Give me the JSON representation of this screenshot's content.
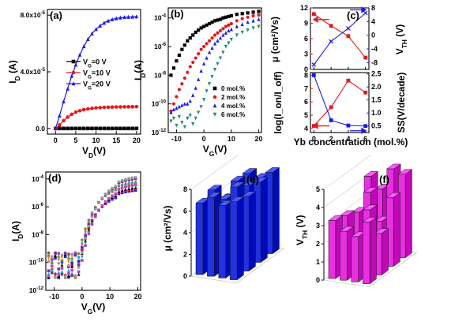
{
  "chart_data": [
    {
      "panel": "(a)",
      "type": "line",
      "xlabel": "V_D(V)",
      "ylabel": "I_D (A)",
      "xlim": [
        -2,
        21
      ],
      "ylim": [
        -4e-06,
        8.4e-05
      ],
      "xticks": [
        "0",
        "5",
        "10",
        "15",
        "20"
      ],
      "yticks": [
        "0.0",
        "4.0x10-5",
        "8.0x10-5"
      ],
      "legend_placement": "center",
      "series": [
        {
          "name": "V_G=0 V",
          "color": "#000000",
          "marker": "square",
          "x": [
            0,
            1,
            2,
            3,
            4,
            5,
            6,
            7,
            8,
            9,
            10,
            11,
            12,
            13,
            14,
            15,
            16,
            17,
            18,
            19,
            20
          ],
          "y": [
            0,
            0,
            0,
            0,
            0,
            0,
            0,
            0,
            0,
            0,
            0,
            0,
            0,
            0,
            0,
            0,
            0,
            0,
            0,
            0,
            0
          ]
        },
        {
          "name": "V_G=10 V",
          "color": "#e8171e",
          "marker": "circle",
          "x": [
            0,
            1,
            2,
            3,
            4,
            5,
            6,
            7,
            8,
            9,
            10,
            11,
            12,
            13,
            14,
            15,
            16,
            17,
            18,
            19,
            20
          ],
          "y": [
            0,
            2.5e-06,
            5.5e-06,
            8e-06,
            1e-05,
            1.15e-05,
            1.25e-05,
            1.33e-05,
            1.38e-05,
            1.42e-05,
            1.45e-05,
            1.47e-05,
            1.49e-05,
            1.5e-05,
            1.51e-05,
            1.52e-05,
            1.52e-05,
            1.53e-05,
            1.53e-05,
            1.53e-05,
            1.54e-05
          ]
        },
        {
          "name": "V_G=20 V",
          "color": "#1a1ae8",
          "marker": "triangle",
          "x": [
            0,
            1,
            2,
            3,
            4,
            5,
            6,
            7,
            8,
            9,
            10,
            11,
            12,
            13,
            14,
            15,
            16,
            17,
            18,
            19,
            20
          ],
          "y": [
            0,
            9e-06,
            1.9e-05,
            2.8e-05,
            3.7e-05,
            4.5e-05,
            5.2e-05,
            5.8e-05,
            6.3e-05,
            6.7e-05,
            7e-05,
            7.25e-05,
            7.45e-05,
            7.6e-05,
            7.7e-05,
            7.77e-05,
            7.82e-05,
            7.85e-05,
            7.87e-05,
            7.88e-05,
            7.9e-05
          ]
        }
      ]
    },
    {
      "panel": "(b)",
      "type": "scatter",
      "xlabel": "V_G(V)",
      "ylabel": "I_D(A)",
      "log_y": true,
      "xlim": [
        -13,
        21
      ],
      "ylim_log10": [
        -12,
        -3.3
      ],
      "xticks": [
        "-10",
        "0",
        "10",
        "20"
      ],
      "yticks": [
        "10-4",
        "10-6",
        "10-8",
        "10-10",
        "10-12"
      ],
      "legend_placement": "bottom-right",
      "series": [
        {
          "name": "0 mol.%",
          "color": "#000000",
          "marker": "square",
          "x": [
            -12,
            -11,
            -10,
            -9,
            -8,
            -7,
            -6,
            -5,
            -4,
            -3,
            -2,
            -1,
            0,
            1,
            2,
            3,
            4,
            5,
            6,
            7,
            8,
            9,
            10,
            12,
            14,
            16,
            18,
            20
          ],
          "log10y": [
            -8.0,
            -7.5,
            -7.0,
            -6.6,
            -6.2,
            -5.9,
            -5.6,
            -5.4,
            -5.2,
            -5.0,
            -4.85,
            -4.7,
            -4.6,
            -4.5,
            -4.4,
            -4.3,
            -4.2,
            -4.15,
            -4.1,
            -4.0,
            -3.95,
            -3.9,
            -3.85,
            -3.75,
            -3.7,
            -3.65,
            -3.6,
            -3.55
          ]
        },
        {
          "name": "2 mol.%",
          "color": "#e8171e",
          "marker": "circle",
          "x": [
            -12,
            -11,
            -10,
            -9,
            -8,
            -7,
            -6,
            -5,
            -4,
            -3,
            -2,
            -1,
            0,
            1,
            2,
            3,
            4,
            5,
            6,
            7,
            8,
            9,
            10,
            12,
            14,
            16,
            18,
            20
          ],
          "log10y": [
            -10.5,
            -10.0,
            -9.5,
            -9.0,
            -8.6,
            -8.2,
            -7.8,
            -7.4,
            -7.1,
            -6.8,
            -6.5,
            -6.2,
            -6.0,
            -5.8,
            -5.6,
            -5.4,
            -5.2,
            -5.05,
            -4.9,
            -4.75,
            -4.6,
            -4.5,
            -4.4,
            -4.2,
            -4.05,
            -3.95,
            -3.85,
            -3.8
          ]
        },
        {
          "name": "4 mol.%",
          "color": "#1a1ae8",
          "marker": "triangle",
          "x": [
            -12,
            -11,
            -10,
            -9,
            -8,
            -7,
            -6,
            -5,
            -4,
            -3,
            -2,
            -1,
            0,
            1,
            2,
            3,
            4,
            5,
            6,
            7,
            8,
            9,
            10,
            12,
            14,
            16,
            18,
            20
          ],
          "log10y": [
            -10.6,
            -10.4,
            -10.3,
            -10.2,
            -10.1,
            -10.0,
            -10.0,
            -9.8,
            -9.4,
            -8.9,
            -8.3,
            -7.7,
            -7.2,
            -6.8,
            -6.4,
            -6.1,
            -5.8,
            -5.6,
            -5.4,
            -5.2,
            -5.05,
            -4.9,
            -4.8,
            -4.6,
            -4.45,
            -4.3,
            -4.2,
            -4.1
          ]
        },
        {
          "name": "6 mol.%",
          "color": "#1e8a7a",
          "marker": "triangle-down",
          "x": [
            -12,
            -11,
            -10,
            -9,
            -8,
            -7,
            -6,
            -5,
            -4,
            -3,
            -2,
            -1,
            0,
            1,
            2,
            3,
            4,
            5,
            6,
            7,
            8,
            9,
            10,
            12,
            14,
            16,
            18,
            20
          ],
          "log10y": [
            -11.2,
            -11.0,
            -11.5,
            -10.9,
            -11.3,
            -11.6,
            -11.0,
            -10.8,
            -11.4,
            -11.0,
            -10.6,
            -10.2,
            -9.7,
            -9.1,
            -8.6,
            -8.1,
            -7.6,
            -7.2,
            -6.8,
            -6.4,
            -6.0,
            -5.75,
            -5.5,
            -5.2,
            -5.0,
            -4.85,
            -4.7,
            -4.6
          ]
        }
      ]
    },
    {
      "panel": "(c)",
      "type": "line",
      "xlabel": "Yb concentration (mol.%)",
      "xlim": [
        -0.4,
        6.4
      ],
      "xticks": [
        "0",
        "2",
        "4",
        "6"
      ],
      "top": {
        "ylabel_left": "μ (cm²/Vs)",
        "ylabel_right": "V_TH (V)",
        "ylim_left": [
          0,
          12
        ],
        "ylim_right": [
          -10,
          8
        ],
        "yticks_left": [
          "0",
          "3",
          "6",
          "9",
          "12"
        ],
        "yticks_right": [
          "-8",
          "-4",
          "0",
          "4",
          "8"
        ],
        "series": [
          {
            "name": "μ",
            "axis": "left",
            "color": "#e8171e",
            "marker": "square",
            "x": [
              0,
              2,
              4,
              6
            ],
            "y": [
              10.8,
              8.5,
              6.5,
              2.3
            ]
          },
          {
            "name": "V_TH",
            "axis": "right",
            "color": "#1a1ae8",
            "marker": "cross",
            "x": [
              0,
              2,
              4,
              6
            ],
            "y": [
              -8.6,
              -1.8,
              2.0,
              6.5
            ]
          }
        ]
      },
      "bottom": {
        "ylabel_left": "log(I_on/I_off)",
        "ylabel_right": "SS(V/decade)",
        "ylim_left": [
          3.7,
          8.2
        ],
        "ylim_right": [
          0.25,
          2.55
        ],
        "yticks_left": [
          "4",
          "5",
          "6",
          "7",
          "8"
        ],
        "yticks_right": [
          "0.5",
          "1.0",
          "1.5",
          "2.0",
          "2.5"
        ],
        "series": [
          {
            "name": "log(Ion/Ioff)",
            "axis": "left",
            "color": "#e8171e",
            "marker": "square",
            "x": [
              0,
              2,
              4,
              6
            ],
            "y": [
              4.2,
              5.6,
              7.6,
              6.7
            ]
          },
          {
            "name": "SS",
            "axis": "right",
            "color": "#1a1ae8",
            "marker": "square",
            "x": [
              0,
              2,
              4,
              6
            ],
            "y": [
              2.45,
              0.72,
              0.52,
              0.5
            ]
          }
        ]
      }
    },
    {
      "panel": "(d)",
      "type": "scatter",
      "xlabel": "V_G(V)",
      "ylabel": "I_D(A)",
      "log_y": true,
      "xlim": [
        -13,
        21
      ],
      "ylim_log10": [
        -12,
        -3.5
      ],
      "xticks": [
        "-10",
        "0",
        "10",
        "20"
      ],
      "yticks": [
        "10-4",
        "10-6",
        "10-8",
        "10-10",
        "10-12"
      ],
      "curves_colors": [
        "#1a1ae8",
        "#e8171e",
        "#000000",
        "#1e8a7a",
        "#c040c0",
        "#8a8a1e",
        "#20a0d0",
        "#e87a1e",
        "#6a3a9a",
        "#9a9a9a"
      ]
    },
    {
      "panel": "(e)",
      "type": "bar",
      "zlabel": "μ (cm²/Vs)",
      "zlim": [
        0,
        8
      ],
      "zticks": [
        "0",
        "2",
        "4",
        "6",
        "8"
      ],
      "bar_color": "#2233dd",
      "grid_values": [
        [
          6.2,
          7.1,
          6.8,
          7.5
        ],
        [
          5.4,
          7.2,
          6.9,
          7.4
        ],
        [
          7.0,
          6.3,
          7.6,
          6.9
        ],
        [
          6.6,
          7.3,
          6.7,
          7.2
        ]
      ]
    },
    {
      "panel": "(f)",
      "type": "bar",
      "zlabel": "V_TH (V)",
      "zlim": [
        0,
        5
      ],
      "zticks": [
        "0",
        "1",
        "2",
        "3",
        "4",
        "5"
      ],
      "bar_color": "#e830e0",
      "grid_values": [
        [
          4.2,
          3.6,
          4.8,
          4.6
        ],
        [
          2.7,
          3.9,
          2.4,
          3.8
        ],
        [
          3.0,
          1.8,
          3.5,
          2.3
        ],
        [
          3.2,
          2.7,
          2.5,
          3.4
        ]
      ]
    }
  ]
}
